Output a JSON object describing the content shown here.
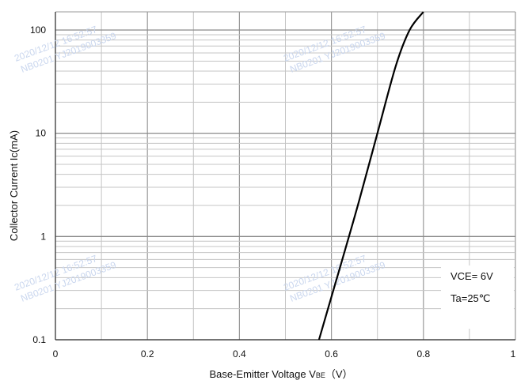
{
  "chart_data": {
    "type": "line",
    "xlabel": "Base-Emitter Voltage",
    "xlabel_symbol_main": "V",
    "xlabel_symbol_sub": "BE",
    "xlabel_unit": "（V）",
    "ylabel": "Collector Current   Ic(mA)",
    "xlim": [
      0,
      1
    ],
    "ylim": [
      0.1,
      150
    ],
    "yscale": "log",
    "grid": true,
    "x_ticks": [
      0,
      0.2,
      0.4,
      0.6,
      0.8,
      1
    ],
    "x_tick_labels": [
      "0",
      "0.2",
      "0.4",
      "0.6",
      "0.8",
      "1"
    ],
    "y_ticks": [
      0.1,
      1,
      10,
      100
    ],
    "y_tick_labels": [
      "0.1",
      "1",
      "10",
      "100"
    ],
    "legend": [
      "VCE= 6V",
      "Ta=25℃"
    ],
    "legend_position": "bottom-right",
    "line_color": "#000000",
    "series": [
      {
        "x": [
          0.573,
          0.6,
          0.63,
          0.66,
          0.7,
          0.74,
          0.77,
          0.8
        ],
        "y": [
          0.1,
          0.26,
          0.75,
          2.2,
          10,
          45,
          100,
          150
        ]
      }
    ]
  },
  "watermarks": [
    "2020/12/12 16:52:57",
    "NB0201 YJ2019003359"
  ]
}
